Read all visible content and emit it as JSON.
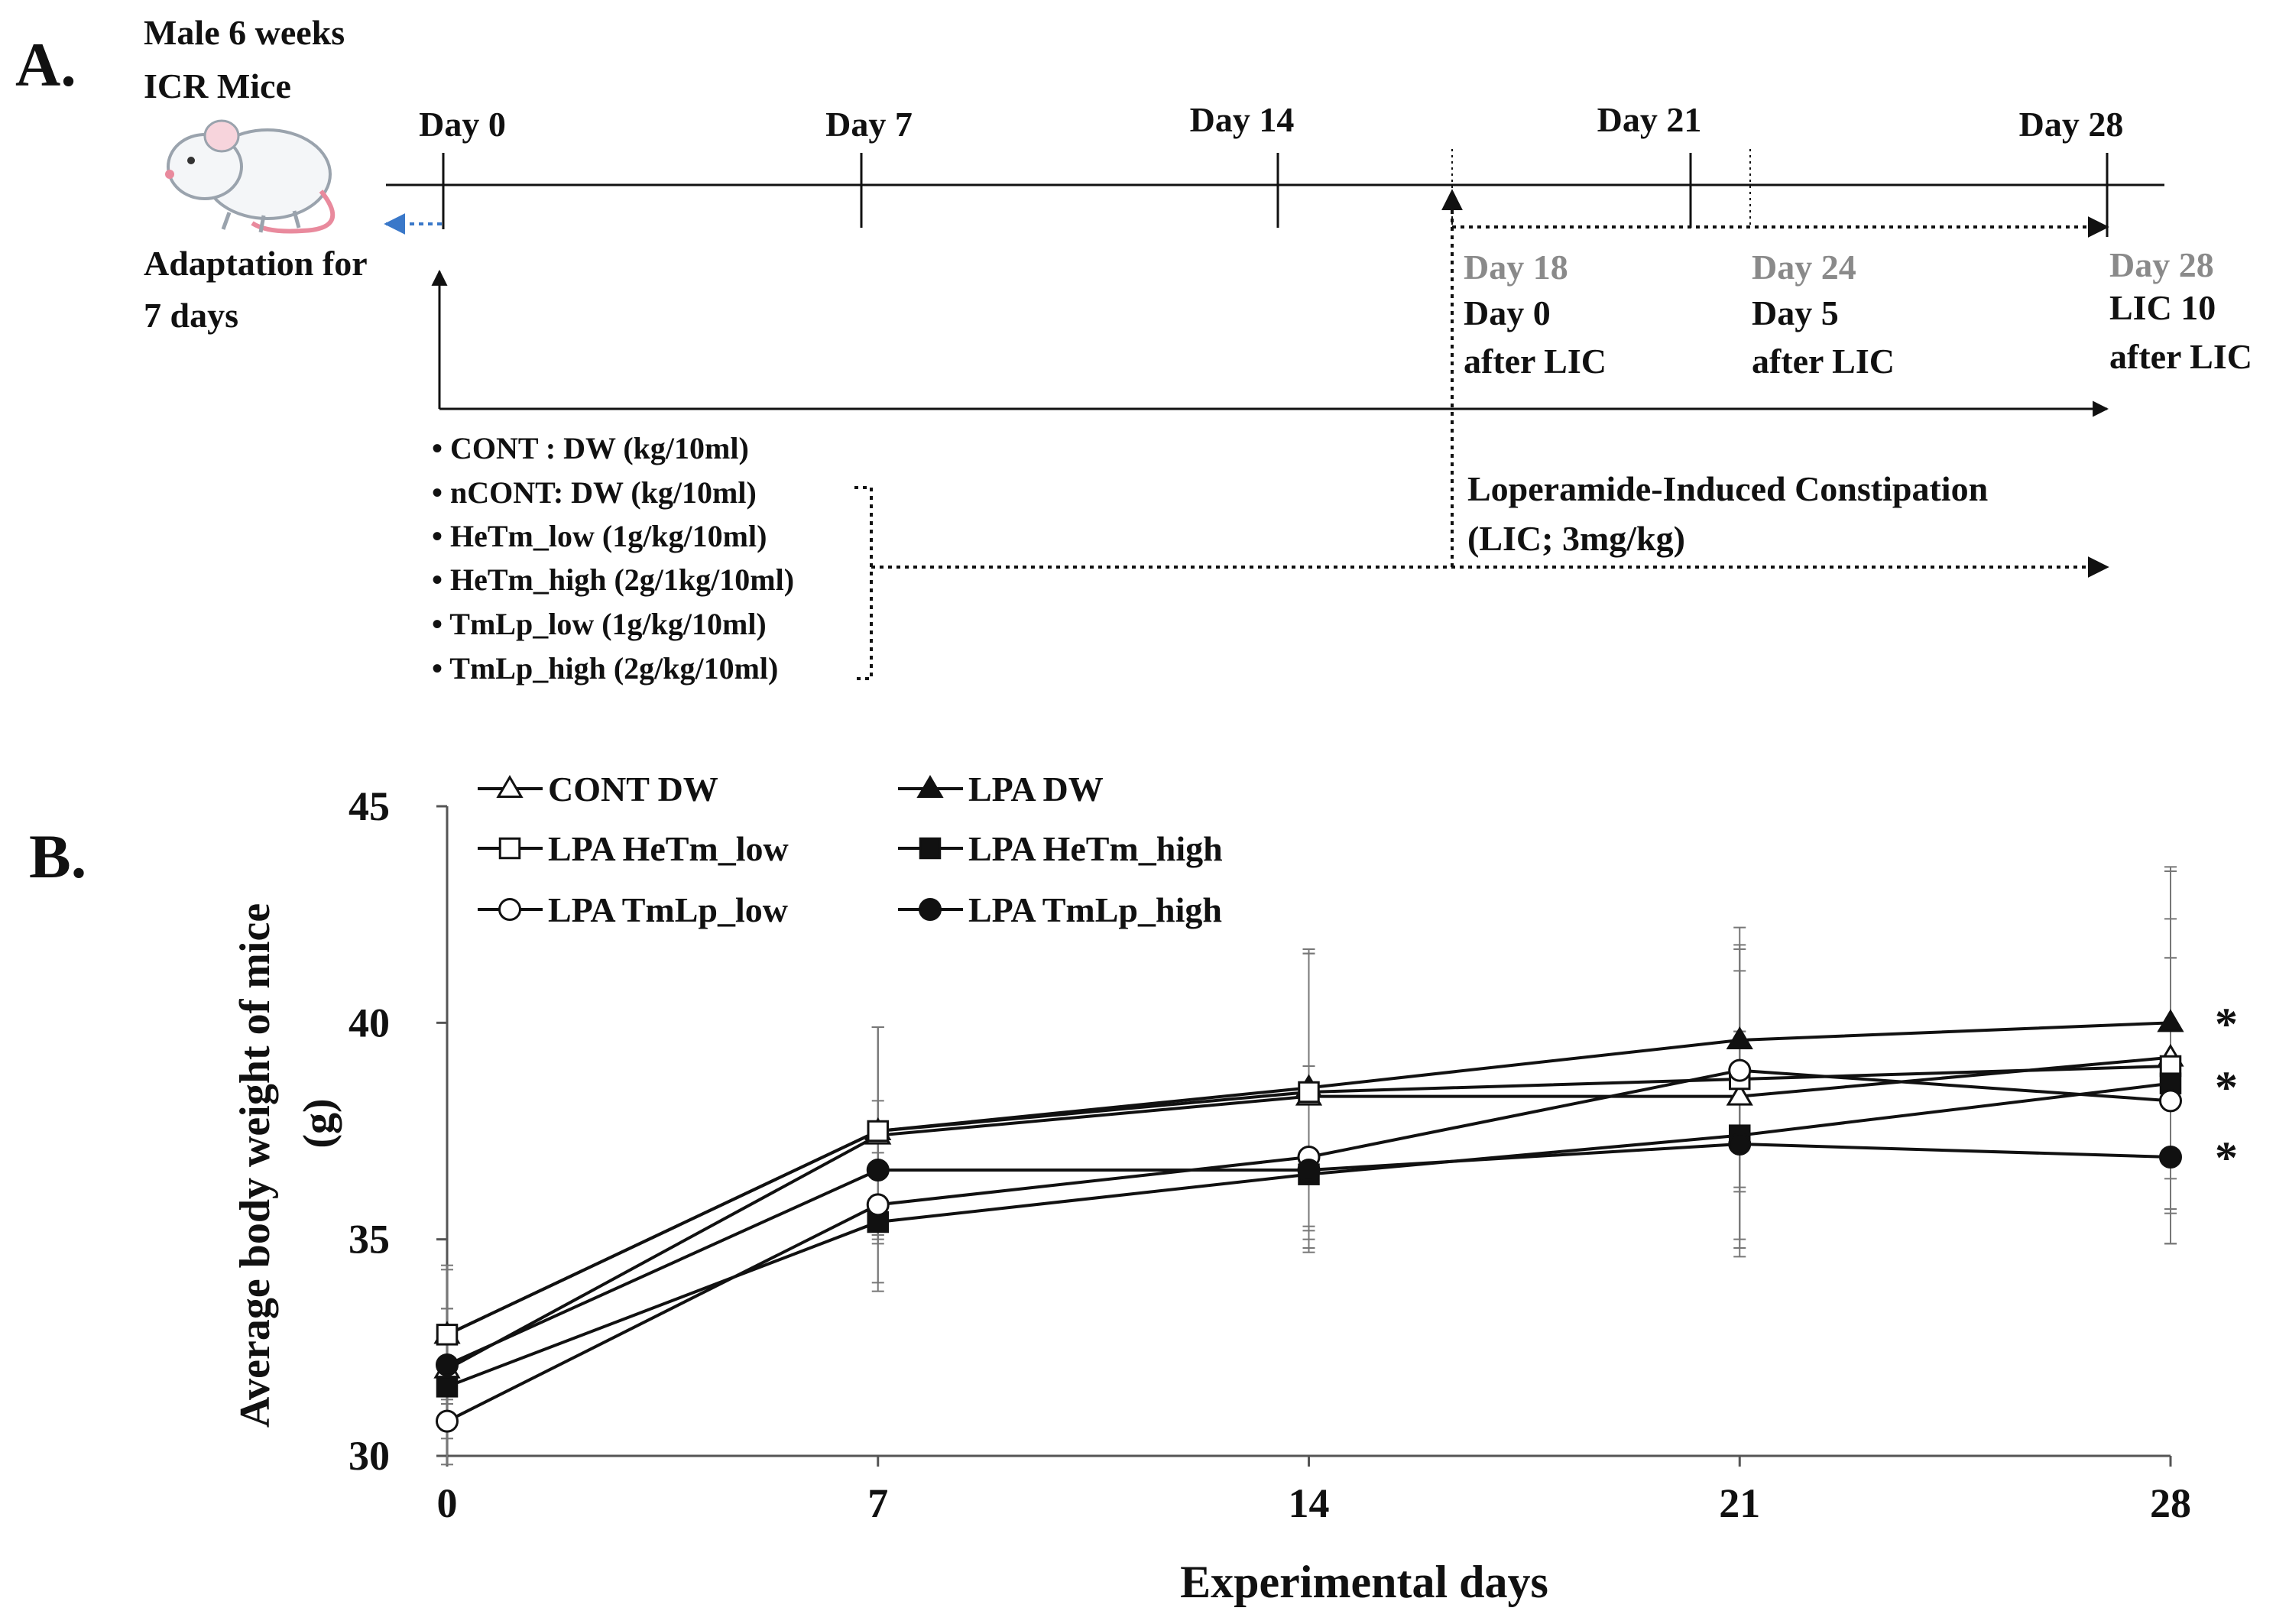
{
  "panel_a": {
    "label": "A.",
    "mouse_header": [
      "Male 6 weeks",
      "ICR Mice"
    ],
    "adaptation": [
      "Adaptation  for",
      "7 days"
    ],
    "day_ticks": [
      "Day 0",
      "Day 7",
      "Day 14",
      "Day 21",
      "Day 28"
    ],
    "lic_points": [
      {
        "day": "Day 18",
        "lines": [
          "Day 0",
          "after LIC"
        ]
      },
      {
        "day": "Day 24",
        "lines": [
          "Day 5",
          "after LIC"
        ]
      },
      {
        "day": "Day 28",
        "lines": [
          "LIC 10",
          "after LIC"
        ]
      }
    ],
    "groups": [
      "• CONT   : DW (kg/10ml)",
      "• nCONT: DW (kg/10ml)",
      "• HeTm_low  (1g/kg/10ml)",
      "• HeTm_high (2g/1kg/10ml)",
      "• TmLp_low (1g/kg/10ml)",
      "• TmLp_high (2g/kg/10ml)"
    ],
    "lic_text": [
      "Loperamide-Induced  Constipation",
      "(LIC; 3mg/kg)"
    ],
    "colors": {
      "adaptation_arrow": "#3a78c9",
      "gray_label": "#8a8a8a"
    }
  },
  "panel_b": {
    "label": "B.",
    "significance_marks": [
      "*",
      "*",
      "*"
    ]
  },
  "chart_data": {
    "type": "line",
    "title": "",
    "xlabel": "Experimental days",
    "ylabel_lines": [
      "Average body weight of mice",
      "(g)"
    ],
    "x": [
      0,
      7,
      14,
      21,
      28
    ],
    "xlim": [
      0,
      28
    ],
    "ylim": [
      30,
      45
    ],
    "yticks": [
      30,
      35,
      40,
      45
    ],
    "grid": false,
    "legend_placement": "top-left",
    "series": [
      {
        "name": "CONT DW",
        "marker": "triangle-open",
        "values": [
          32.0,
          37.4,
          38.3,
          38.3,
          39.2
        ],
        "err": [
          1.4,
          2.5,
          3.3,
          3.5,
          4.3
        ]
      },
      {
        "name": "LPA DW",
        "marker": "triangle-filled",
        "values": [
          32.8,
          37.5,
          38.5,
          39.6,
          40.0
        ],
        "err": [
          1.6,
          2.4,
          3.2,
          2.6,
          3.6
        ]
      },
      {
        "name": "LPA  HeTm_low",
        "marker": "square-open",
        "values": [
          32.8,
          37.5,
          38.4,
          38.7,
          39.0
        ],
        "err": [
          1.5,
          2.4,
          3.2,
          2.5,
          3.4
        ]
      },
      {
        "name": "LPA  HeTm_high",
        "marker": "square-filled",
        "values": [
          31.6,
          35.4,
          36.5,
          37.4,
          38.6
        ],
        "err": [
          1.2,
          1.6,
          1.7,
          2.4,
          2.9
        ]
      },
      {
        "name": "LPA  TmLp_low",
        "marker": "circle-open",
        "values": [
          30.8,
          35.8,
          36.9,
          38.9,
          38.2
        ],
        "err": [
          1.0,
          1.8,
          2.1,
          2.8,
          3.3
        ]
      },
      {
        "name": "LPA  TmLp_high",
        "marker": "circle-filled",
        "values": [
          32.1,
          36.6,
          36.6,
          37.2,
          36.9
        ],
        "err": [
          1.3,
          1.6,
          1.9,
          2.6,
          2.0
        ]
      }
    ]
  }
}
